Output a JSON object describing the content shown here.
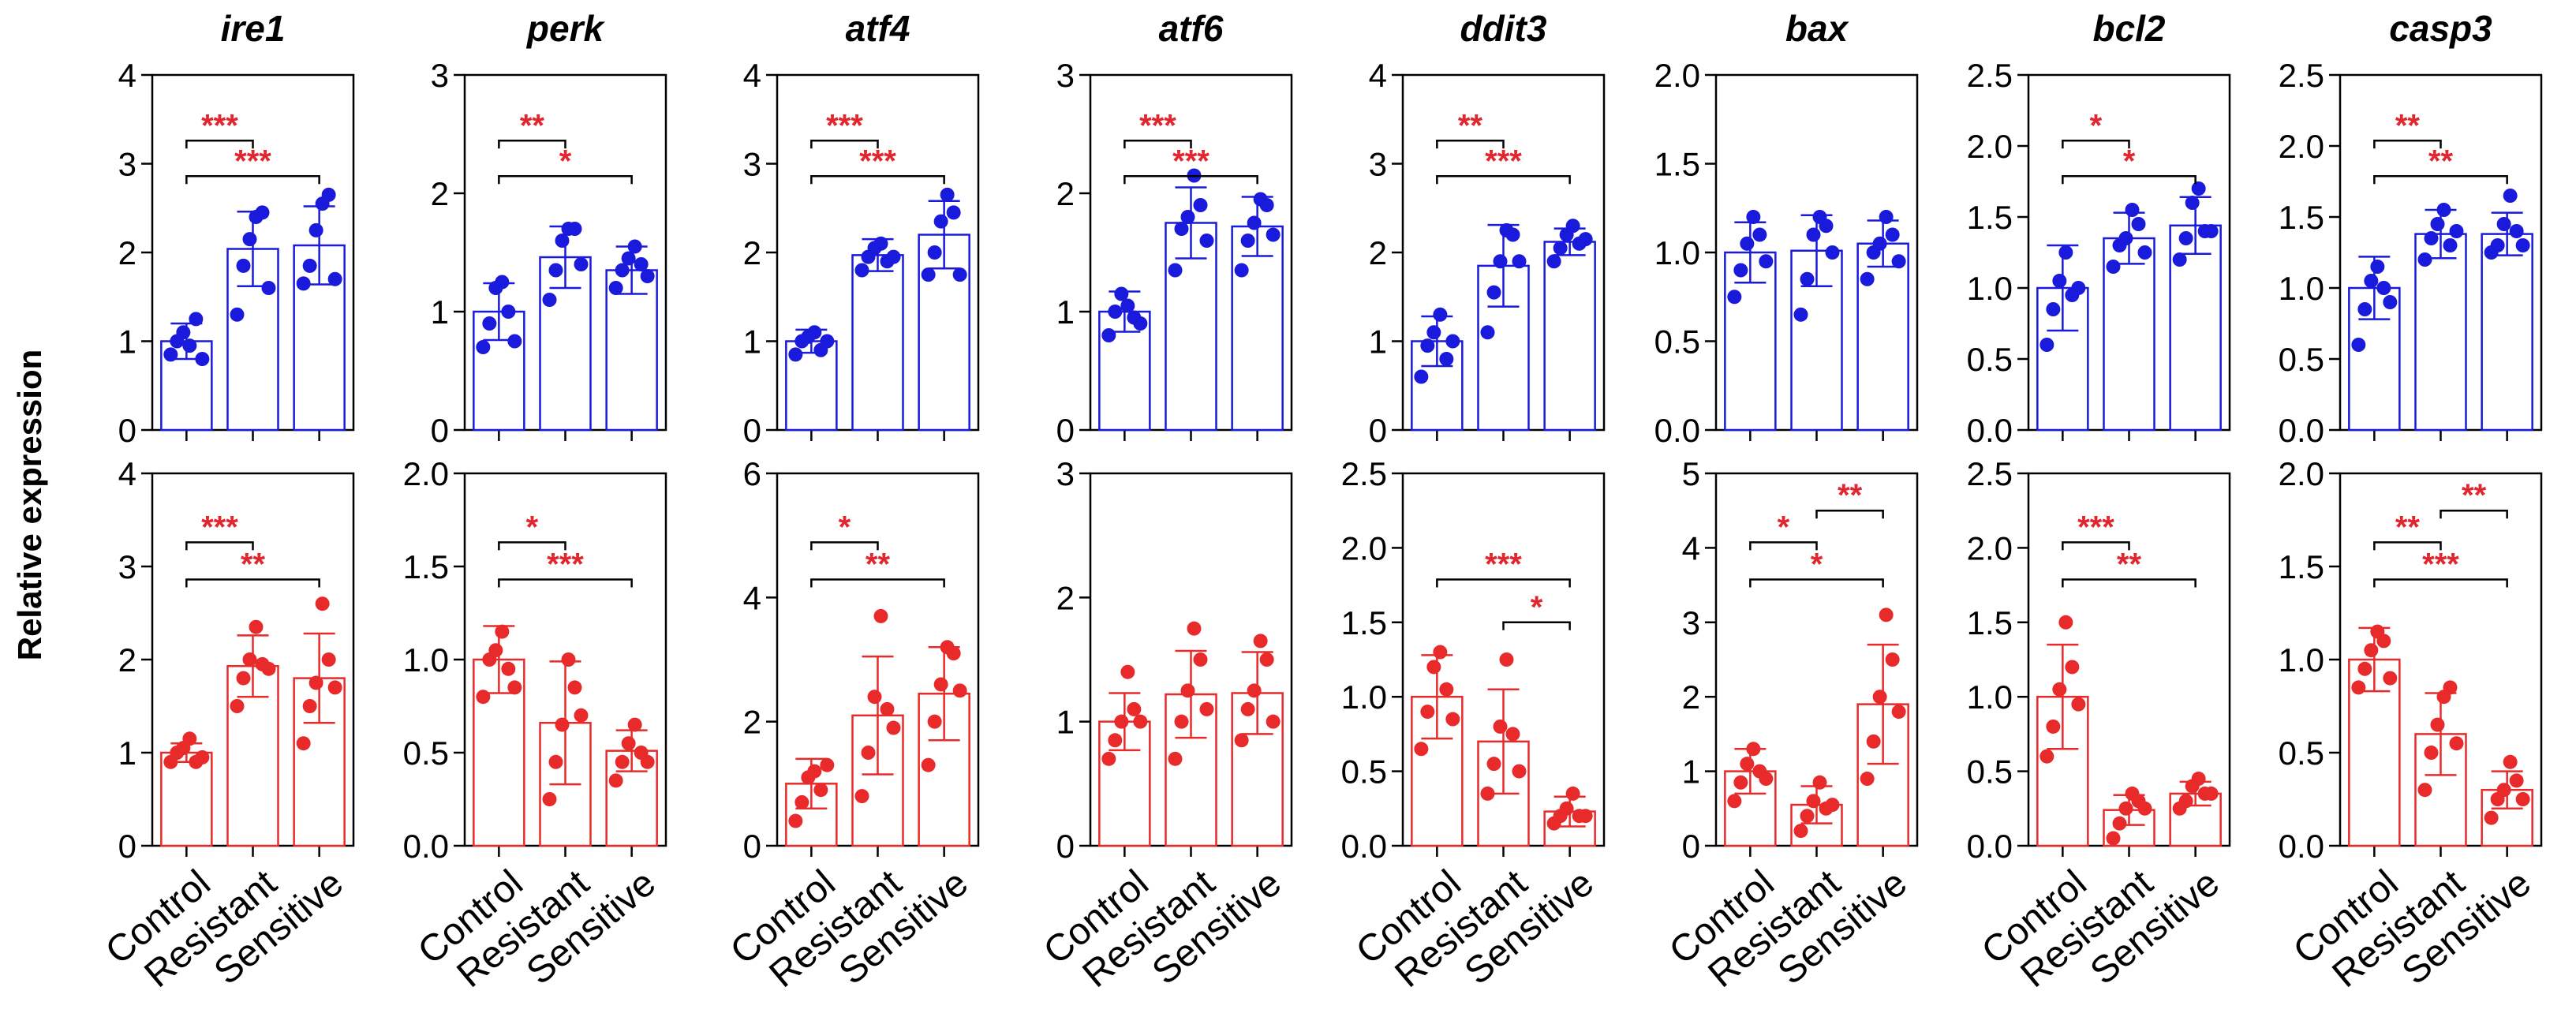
{
  "figure": {
    "ylabel": "Relative expression",
    "colors": {
      "top": "#1a1adc",
      "bottom": "#e82a2a",
      "star": "#e0262e",
      "axis": "#000000"
    }
  },
  "chart_data": [
    {
      "type": "bar",
      "row": "top",
      "title": "ire1",
      "categories": [
        "Control",
        "Resistant",
        "Sensitive"
      ],
      "ylim": [
        0,
        4
      ],
      "yticks": [
        0,
        1,
        2,
        3,
        4
      ],
      "means": [
        1.0,
        2.04,
        2.08
      ],
      "sd": [
        0.2,
        0.42,
        0.44
      ],
      "points": [
        [
          0.85,
          1.0,
          1.1,
          0.95,
          1.25,
          0.8
        ],
        [
          1.3,
          1.85,
          2.15,
          2.4,
          2.45,
          1.6
        ],
        [
          1.65,
          1.85,
          2.25,
          2.55,
          2.65,
          1.7
        ]
      ],
      "sig": [
        {
          "from": 0,
          "to": 1,
          "label": "***"
        },
        {
          "from": 0,
          "to": 2,
          "label": "***"
        }
      ]
    },
    {
      "type": "bar",
      "row": "top",
      "title": "perk",
      "categories": [
        "Control",
        "Resistant",
        "Sensitive"
      ],
      "ylim": [
        0,
        3
      ],
      "yticks": [
        0,
        1,
        2,
        3
      ],
      "means": [
        1.0,
        1.46,
        1.35
      ],
      "sd": [
        0.24,
        0.26,
        0.2
      ],
      "points": [
        [
          0.7,
          0.9,
          1.2,
          1.25,
          1.0,
          0.75
        ],
        [
          1.1,
          1.35,
          1.6,
          1.7,
          1.7,
          1.4
        ],
        [
          1.2,
          1.35,
          1.45,
          1.55,
          1.4,
          1.3
        ]
      ],
      "sig": [
        {
          "from": 0,
          "to": 1,
          "label": "**"
        },
        {
          "from": 0,
          "to": 2,
          "label": "*"
        }
      ]
    },
    {
      "type": "bar",
      "row": "top",
      "title": "atf4",
      "categories": [
        "Control",
        "Resistant",
        "Sensitive"
      ],
      "ylim": [
        0,
        4
      ],
      "yticks": [
        0,
        1,
        2,
        3,
        4
      ],
      "means": [
        1.0,
        1.97,
        2.2
      ],
      "sd": [
        0.13,
        0.18,
        0.38
      ],
      "points": [
        [
          0.85,
          1.0,
          1.05,
          1.1,
          0.9,
          1.0
        ],
        [
          1.8,
          1.95,
          2.05,
          2.1,
          1.9,
          1.95
        ],
        [
          1.75,
          2.0,
          2.35,
          2.65,
          2.45,
          1.75
        ]
      ],
      "sig": [
        {
          "from": 0,
          "to": 1,
          "label": "***"
        },
        {
          "from": 0,
          "to": 2,
          "label": "***"
        }
      ]
    },
    {
      "type": "bar",
      "row": "top",
      "title": "atf6",
      "categories": [
        "Control",
        "Resistant",
        "Sensitive"
      ],
      "ylim": [
        0,
        3
      ],
      "yticks": [
        0,
        1,
        2,
        3
      ],
      "means": [
        1.0,
        1.75,
        1.72
      ],
      "sd": [
        0.17,
        0.3,
        0.25
      ],
      "points": [
        [
          0.8,
          1.0,
          1.15,
          1.05,
          0.95,
          0.9
        ],
        [
          1.35,
          1.7,
          1.8,
          2.15,
          1.9,
          1.6
        ],
        [
          1.35,
          1.6,
          1.75,
          1.95,
          1.9,
          1.65
        ]
      ],
      "sig": [
        {
          "from": 0,
          "to": 1,
          "label": "***"
        },
        {
          "from": 0,
          "to": 2,
          "label": "***"
        }
      ]
    },
    {
      "type": "bar",
      "row": "top",
      "title": "ddit3",
      "categories": [
        "Control",
        "Resistant",
        "Sensitive"
      ],
      "ylim": [
        0,
        4
      ],
      "yticks": [
        0,
        1,
        2,
        3,
        4
      ],
      "means": [
        1.0,
        1.85,
        2.12
      ],
      "sd": [
        0.28,
        0.46,
        0.15
      ],
      "points": [
        [
          0.6,
          0.95,
          1.1,
          1.3,
          0.8,
          1.0
        ],
        [
          1.1,
          1.55,
          1.9,
          2.25,
          2.2,
          1.9
        ],
        [
          1.9,
          2.05,
          2.2,
          2.3,
          2.1,
          2.15
        ]
      ],
      "sig": [
        {
          "from": 0,
          "to": 1,
          "label": "**"
        },
        {
          "from": 0,
          "to": 2,
          "label": "***"
        }
      ]
    },
    {
      "type": "bar",
      "row": "top",
      "title": "bax",
      "categories": [
        "Control",
        "Resistant",
        "Sensitive"
      ],
      "ylim": [
        0,
        2
      ],
      "yticks": [
        0,
        0.5,
        1,
        1.5,
        2
      ],
      "decimals": 1,
      "means": [
        1.0,
        1.01,
        1.05
      ],
      "sd": [
        0.17,
        0.2,
        0.13
      ],
      "points": [
        [
          0.75,
          0.9,
          1.05,
          1.2,
          1.1,
          0.95
        ],
        [
          0.65,
          0.85,
          1.1,
          1.2,
          1.15,
          1.0
        ],
        [
          0.85,
          1.0,
          1.05,
          1.2,
          1.1,
          0.95
        ]
      ],
      "sig": []
    },
    {
      "type": "bar",
      "row": "top",
      "title": "bcl2",
      "categories": [
        "Control",
        "Resistant",
        "Sensitive"
      ],
      "ylim": [
        0,
        2.5
      ],
      "yticks": [
        0,
        0.5,
        1,
        1.5,
        2,
        2.5
      ],
      "decimals": 1,
      "means": [
        1.0,
        1.35,
        1.44
      ],
      "sd": [
        0.3,
        0.18,
        0.2
      ],
      "points": [
        [
          0.6,
          0.85,
          1.05,
          1.25,
          0.95,
          1.0
        ],
        [
          1.15,
          1.3,
          1.35,
          1.55,
          1.45,
          1.25
        ],
        [
          1.2,
          1.35,
          1.6,
          1.7,
          1.4,
          1.4
        ]
      ],
      "sig": [
        {
          "from": 0,
          "to": 1,
          "label": "*"
        },
        {
          "from": 0,
          "to": 2,
          "label": "*"
        }
      ]
    },
    {
      "type": "bar",
      "row": "top",
      "title": "casp3",
      "categories": [
        "Control",
        "Resistant",
        "Sensitive"
      ],
      "ylim": [
        0,
        2.5
      ],
      "yticks": [
        0,
        0.5,
        1,
        1.5,
        2,
        2.5
      ],
      "decimals": 1,
      "means": [
        1.0,
        1.38,
        1.38
      ],
      "sd": [
        0.22,
        0.17,
        0.15
      ],
      "points": [
        [
          0.6,
          0.85,
          1.05,
          1.15,
          1.0,
          0.9
        ],
        [
          1.2,
          1.35,
          1.45,
          1.55,
          1.3,
          1.4
        ],
        [
          1.25,
          1.3,
          1.45,
          1.65,
          1.4,
          1.3
        ]
      ],
      "sig": [
        {
          "from": 0,
          "to": 1,
          "label": "**"
        },
        {
          "from": 0,
          "to": 2,
          "label": "**"
        }
      ]
    },
    {
      "type": "bar",
      "row": "bottom",
      "title": "ire1",
      "categories": [
        "Control",
        "Resistant",
        "Sensitive"
      ],
      "ylim": [
        0,
        4
      ],
      "yticks": [
        0,
        1,
        2,
        3,
        4
      ],
      "means": [
        1.0,
        1.93,
        1.8
      ],
      "sd": [
        0.1,
        0.33,
        0.48
      ],
      "points": [
        [
          0.9,
          1.0,
          1.05,
          1.15,
          0.9,
          0.95
        ],
        [
          1.5,
          1.8,
          2.0,
          2.35,
          1.95,
          1.9
        ],
        [
          1.1,
          1.5,
          1.75,
          2.6,
          2.0,
          1.7
        ]
      ],
      "sig": [
        {
          "from": 0,
          "to": 1,
          "label": "***"
        },
        {
          "from": 0,
          "to": 2,
          "label": "**"
        }
      ]
    },
    {
      "type": "bar",
      "row": "bottom",
      "title": "perk",
      "categories": [
        "Control",
        "Resistant",
        "Sensitive"
      ],
      "ylim": [
        0,
        2
      ],
      "yticks": [
        0,
        0.5,
        1,
        1.5,
        2
      ],
      "decimals": 1,
      "means": [
        1.0,
        0.66,
        0.51
      ],
      "sd": [
        0.18,
        0.33,
        0.11
      ],
      "points": [
        [
          0.8,
          1.0,
          1.05,
          1.15,
          0.95,
          0.85
        ],
        [
          0.25,
          0.45,
          0.65,
          1.0,
          0.85,
          0.7
        ],
        [
          0.35,
          0.45,
          0.55,
          0.65,
          0.5,
          0.45
        ]
      ],
      "sig": [
        {
          "from": 0,
          "to": 1,
          "label": "*"
        },
        {
          "from": 0,
          "to": 2,
          "label": "***"
        }
      ]
    },
    {
      "type": "bar",
      "row": "bottom",
      "title": "atf4",
      "categories": [
        "Control",
        "Resistant",
        "Sensitive"
      ],
      "ylim": [
        0,
        6
      ],
      "yticks": [
        0,
        2,
        4,
        6
      ],
      "means": [
        1.0,
        2.1,
        2.45
      ],
      "sd": [
        0.4,
        0.95,
        0.75
      ],
      "points": [
        [
          0.4,
          0.7,
          1.1,
          1.2,
          0.9,
          1.3
        ],
        [
          0.8,
          1.5,
          2.4,
          3.7,
          2.2,
          1.9
        ],
        [
          1.3,
          2.0,
          2.6,
          3.2,
          3.1,
          2.5
        ]
      ],
      "sig": [
        {
          "from": 0,
          "to": 1,
          "label": "*"
        },
        {
          "from": 0,
          "to": 2,
          "label": "**"
        }
      ]
    },
    {
      "type": "bar",
      "row": "bottom",
      "title": "atf6",
      "categories": [
        "Control",
        "Resistant",
        "Sensitive"
      ],
      "ylim": [
        0,
        3
      ],
      "yticks": [
        0,
        1,
        2,
        3
      ],
      "means": [
        1.0,
        1.22,
        1.23
      ],
      "sd": [
        0.23,
        0.35,
        0.33
      ],
      "points": [
        [
          0.7,
          0.85,
          1.0,
          1.4,
          1.1,
          1.0
        ],
        [
          0.7,
          1.0,
          1.25,
          1.75,
          1.5,
          1.1
        ],
        [
          0.85,
          1.1,
          1.25,
          1.65,
          1.5,
          1.0
        ]
      ],
      "sig": []
    },
    {
      "type": "bar",
      "row": "bottom",
      "title": "ddit3",
      "categories": [
        "Control",
        "Resistant",
        "Sensitive"
      ],
      "ylim": [
        0,
        2.5
      ],
      "yticks": [
        0,
        0.5,
        1,
        1.5,
        2,
        2.5
      ],
      "decimals": 1,
      "means": [
        1.0,
        0.7,
        0.23
      ],
      "sd": [
        0.28,
        0.35,
        0.1
      ],
      "points": [
        [
          0.65,
          0.9,
          1.2,
          1.3,
          1.05,
          0.85
        ],
        [
          0.35,
          0.55,
          0.8,
          1.25,
          0.75,
          0.5
        ],
        [
          0.15,
          0.2,
          0.25,
          0.35,
          0.2,
          0.2
        ]
      ],
      "sig": [
        {
          "from": 0,
          "to": 2,
          "label": "***"
        },
        {
          "from": 1,
          "to": 2,
          "label": "*"
        }
      ]
    },
    {
      "type": "bar",
      "row": "bottom",
      "title": "bax",
      "categories": [
        "Control",
        "Resistant",
        "Sensitive"
      ],
      "ylim": [
        0,
        5
      ],
      "yticks": [
        0,
        1,
        2,
        3,
        4,
        5
      ],
      "means": [
        1.0,
        0.55,
        1.9
      ],
      "sd": [
        0.3,
        0.25,
        0.8
      ],
      "points": [
        [
          0.6,
          0.85,
          1.1,
          1.3,
          1.0,
          0.9
        ],
        [
          0.2,
          0.4,
          0.6,
          0.85,
          0.5,
          0.55
        ],
        [
          0.9,
          1.4,
          2.0,
          3.1,
          2.5,
          1.8
        ]
      ],
      "sig": [
        {
          "from": 0,
          "to": 1,
          "label": "*"
        },
        {
          "from": 0,
          "to": 2,
          "label": "*"
        },
        {
          "from": 1,
          "to": 2,
          "label": "**"
        }
      ]
    },
    {
      "type": "bar",
      "row": "bottom",
      "title": "bcl2",
      "categories": [
        "Control",
        "Resistant",
        "Sensitive"
      ],
      "ylim": [
        0,
        2.5
      ],
      "yticks": [
        0,
        0.5,
        1,
        1.5,
        2,
        2.5
      ],
      "decimals": 1,
      "means": [
        1.0,
        0.24,
        0.35
      ],
      "sd": [
        0.35,
        0.1,
        0.08
      ],
      "points": [
        [
          0.6,
          0.8,
          1.05,
          1.5,
          1.2,
          0.95
        ],
        [
          0.05,
          0.15,
          0.25,
          0.35,
          0.3,
          0.25
        ],
        [
          0.25,
          0.3,
          0.4,
          0.45,
          0.35,
          0.35
        ]
      ],
      "sig": [
        {
          "from": 0,
          "to": 1,
          "label": "***"
        },
        {
          "from": 0,
          "to": 2,
          "label": "**"
        }
      ]
    },
    {
      "type": "bar",
      "row": "bottom",
      "title": "casp3",
      "categories": [
        "Control",
        "Resistant",
        "Sensitive"
      ],
      "ylim": [
        0,
        2
      ],
      "yticks": [
        0,
        0.5,
        1,
        1.5,
        2
      ],
      "decimals": 1,
      "means": [
        1.0,
        0.6,
        0.3
      ],
      "sd": [
        0.17,
        0.22,
        0.1
      ],
      "points": [
        [
          0.85,
          0.95,
          1.05,
          1.15,
          1.1,
          0.9
        ],
        [
          0.3,
          0.5,
          0.65,
          0.8,
          0.85,
          0.55
        ],
        [
          0.15,
          0.25,
          0.3,
          0.45,
          0.35,
          0.25
        ]
      ],
      "sig": [
        {
          "from": 0,
          "to": 1,
          "label": "**"
        },
        {
          "from": 0,
          "to": 2,
          "label": "***"
        },
        {
          "from": 1,
          "to": 2,
          "label": "**"
        }
      ]
    }
  ]
}
